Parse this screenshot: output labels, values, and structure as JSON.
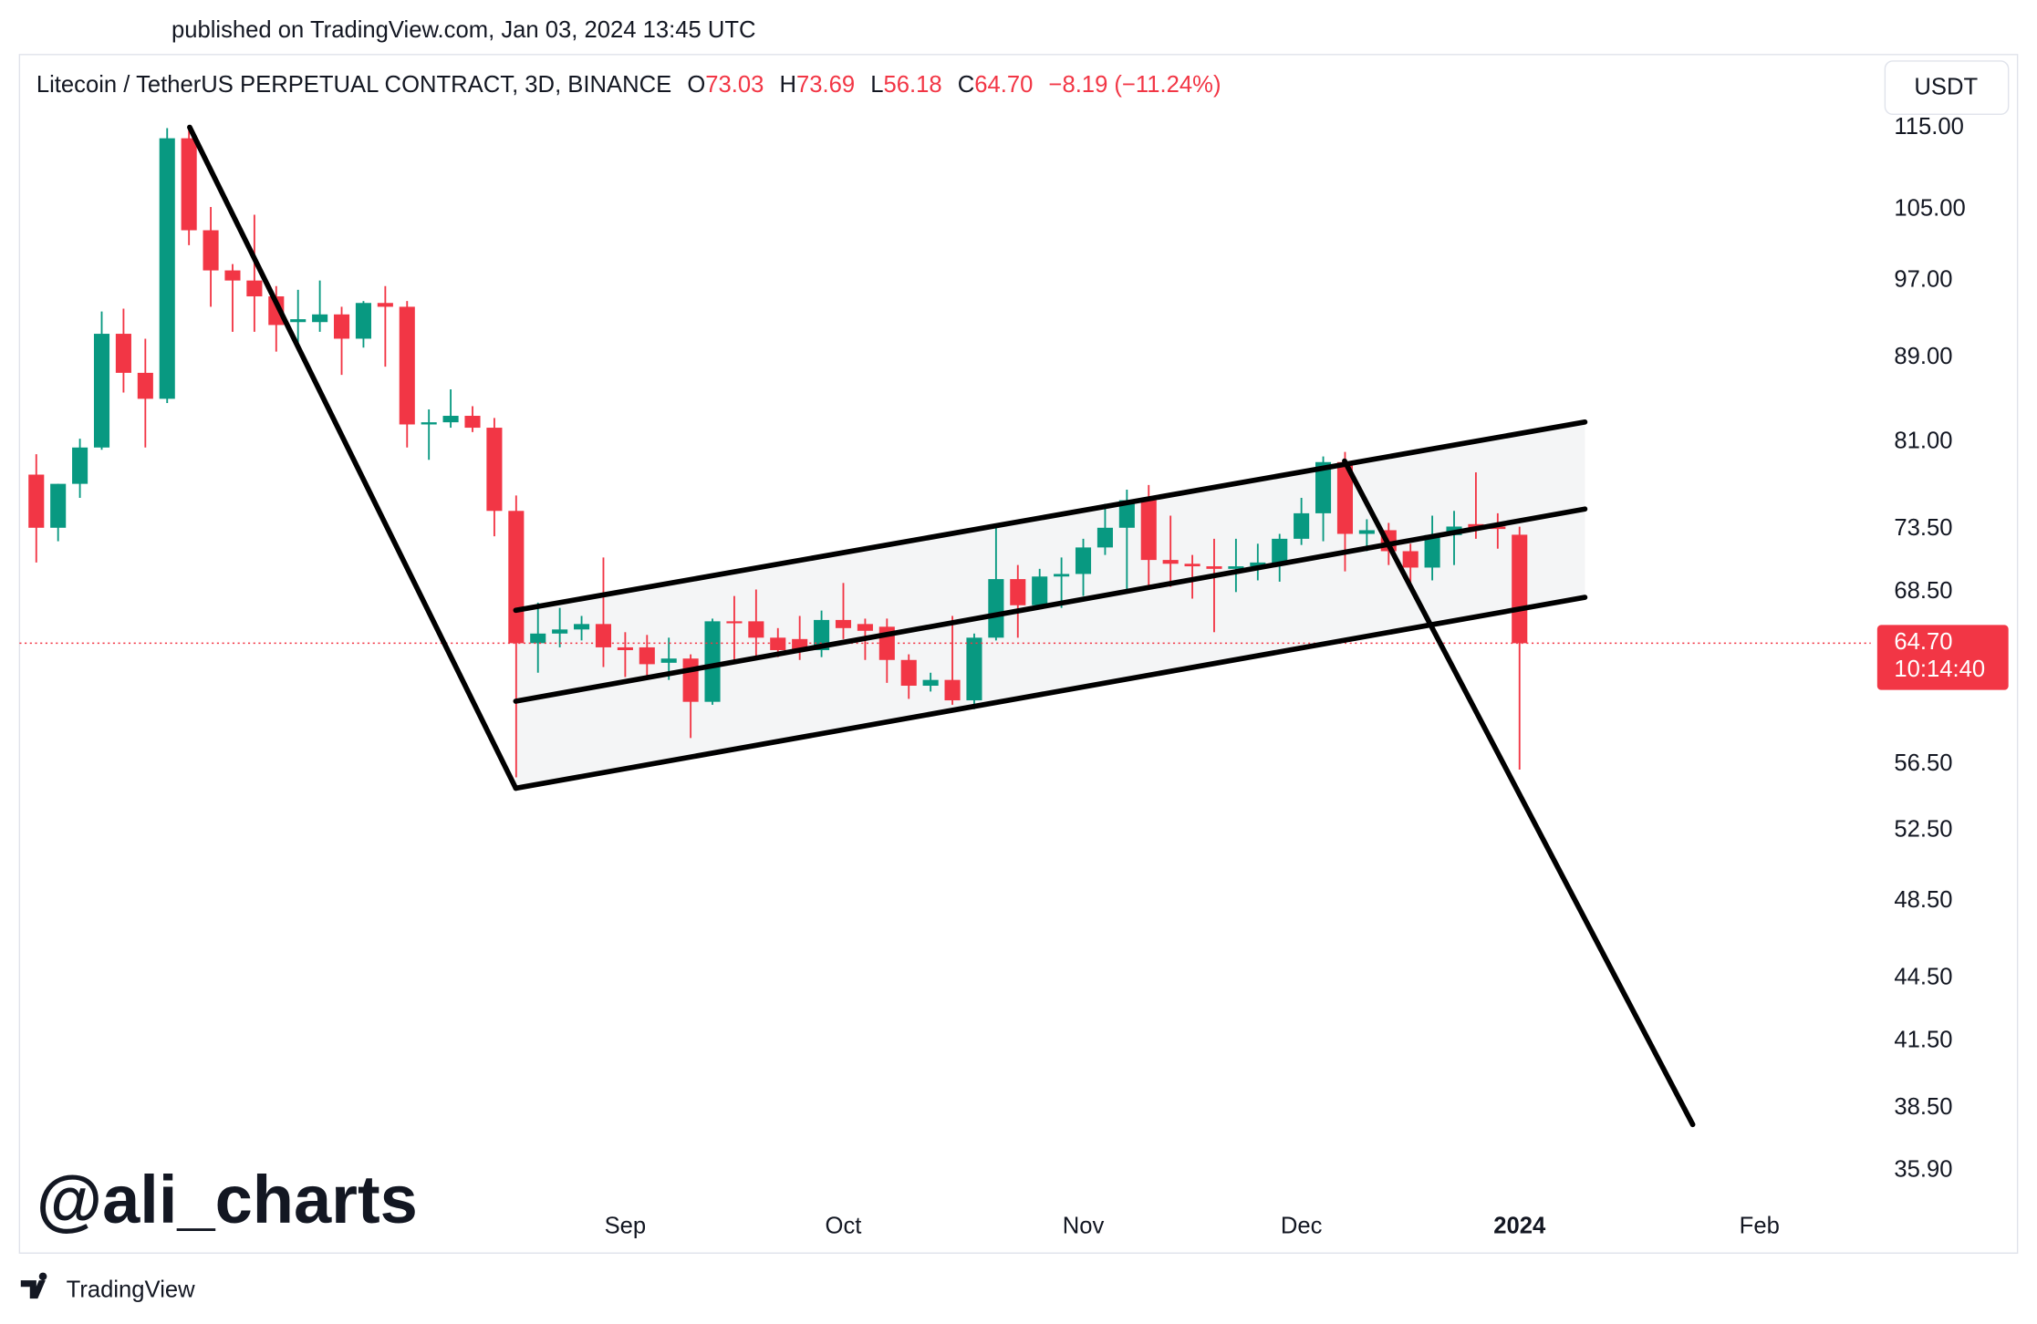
{
  "published": "published on TradingView.com, Jan 03, 2024 13:45 UTC",
  "watermark": "@ali_charts",
  "footer": "TradingView",
  "chart_data": {
    "type": "candlestick",
    "title": "Litecoin / TetherUS PERPETUAL CONTRACT, 3D, BINANCE",
    "legend": [
      {
        "label": "O",
        "value": "73.03"
      },
      {
        "label": "H",
        "value": "73.69"
      },
      {
        "label": "L",
        "value": "56.18"
      },
      {
        "label": "C",
        "value": "64.70"
      }
    ],
    "change": "−8.19 (−11.24%)",
    "currency": "USDT",
    "up_color": "#089981",
    "down_color": "#f23645",
    "open": [
      78.1,
      73.6,
      77.3,
      80.5,
      91.4,
      87.5,
      85.0,
      113.7,
      102.6,
      98.1,
      97.0,
      95.3,
      92.6,
      92.6,
      93.4,
      90.9,
      94.6,
      94.2,
      82.6,
      82.8,
      83.4,
      82.3,
      75.0,
      64.7,
      65.4,
      65.7,
      66.1,
      64.4,
      64.4,
      63.3,
      63.6,
      60.6,
      66.3,
      66.3,
      65.1,
      65.0,
      64.2,
      66.4,
      66.1,
      65.9,
      63.5,
      61.7,
      62.1,
      60.7,
      65.1,
      69.5,
      67.5,
      69.7,
      69.9,
      72.0,
      73.6,
      75.9,
      71.0,
      70.7,
      70.5,
      70.3,
      70.5,
      70.6,
      72.7,
      74.8,
      79.2,
      73.1,
      73.4,
      71.7,
      70.4,
      73.0,
      73.9,
      73.7,
      73.03
    ],
    "high": [
      79.9,
      77.3,
      81.3,
      93.7,
      94.0,
      90.9,
      115.0,
      114.8,
      105.3,
      98.8,
      104.4,
      96.4,
      96.0,
      97.0,
      94.2,
      94.8,
      96.4,
      94.8,
      84.0,
      85.9,
      84.3,
      83.2,
      76.3,
      67.7,
      67.3,
      66.7,
      71.2,
      65.5,
      65.3,
      65.1,
      63.9,
      66.5,
      68.2,
      68.7,
      65.8,
      66.7,
      67.1,
      69.2,
      66.5,
      66.5,
      63.9,
      62.6,
      66.7,
      65.4,
      73.9,
      70.6,
      70.3,
      71.2,
      72.7,
      75.6,
      76.8,
      77.2,
      74.6,
      71.4,
      72.7,
      72.7,
      72.3,
      73.1,
      76.1,
      79.7,
      80.1,
      74.3,
      74.0,
      72.3,
      74.6,
      75.0,
      78.3,
      74.8,
      73.69
    ],
    "low": [
      70.8,
      72.5,
      76.1,
      80.3,
      85.6,
      80.5,
      84.6,
      100.9,
      94.2,
      91.6,
      91.6,
      89.6,
      90.0,
      91.6,
      87.3,
      90.0,
      88.1,
      80.5,
      79.4,
      82.3,
      81.9,
      72.9,
      55.7,
      62.6,
      64.4,
      64.9,
      63.0,
      62.3,
      62.1,
      62.1,
      58.2,
      60.4,
      63.3,
      63.5,
      63.7,
      63.5,
      63.7,
      65.0,
      63.5,
      61.9,
      60.8,
      61.3,
      60.4,
      60.1,
      64.9,
      65.1,
      67.3,
      67.3,
      68.2,
      71.4,
      68.4,
      68.7,
      68.9,
      68.0,
      65.5,
      68.5,
      69.4,
      69.3,
      72.2,
      72.5,
      70.1,
      71.7,
      70.6,
      68.9,
      69.4,
      70.6,
      72.7,
      71.9,
      56.18
    ],
    "close": [
      73.6,
      77.3,
      80.5,
      91.4,
      87.5,
      85.0,
      113.7,
      102.6,
      98.1,
      97.0,
      95.3,
      92.3,
      92.9,
      93.4,
      90.9,
      94.6,
      94.2,
      82.6,
      82.8,
      83.4,
      82.3,
      75.0,
      64.7,
      65.4,
      65.7,
      66.1,
      64.4,
      64.2,
      63.2,
      63.6,
      60.6,
      66.3,
      66.2,
      65.1,
      64.2,
      64.1,
      66.4,
      65.8,
      65.6,
      63.5,
      61.7,
      62.1,
      60.7,
      65.1,
      69.5,
      67.5,
      69.7,
      69.9,
      72.0,
      73.6,
      75.9,
      71.0,
      70.7,
      70.5,
      70.3,
      70.5,
      70.8,
      72.7,
      74.8,
      79.2,
      73.1,
      73.4,
      71.7,
      70.4,
      73.0,
      73.7,
      73.6,
      73.5,
      64.7
    ],
    "last_price": {
      "value": 64.7,
      "label": "64.70"
    },
    "countdown": "10:14:40",
    "log_scale": true,
    "xlim": [
      -0.77,
      84.1
    ],
    "xticks": [
      {
        "value": 27,
        "label": "Sep"
      },
      {
        "value": 37,
        "label": "Oct"
      },
      {
        "value": 48,
        "label": "Nov"
      },
      {
        "value": 58,
        "label": "Dec"
      },
      {
        "value": 68,
        "label": "2024"
      },
      {
        "value": 79,
        "label": "Feb"
      }
    ],
    "ylim": [
      34.7,
      124.3
    ],
    "yticks": [
      {
        "value": 115,
        "label": "115.00"
      },
      {
        "value": 105,
        "label": "105.00"
      },
      {
        "value": 97,
        "label": "97.00"
      },
      {
        "value": 89,
        "label": "89.00"
      },
      {
        "value": 81,
        "label": "81.00"
      },
      {
        "value": 73.5,
        "label": "73.50"
      },
      {
        "value": 68.5,
        "label": "68.50"
      },
      {
        "value": 56.5,
        "label": "56.50"
      },
      {
        "value": 52.5,
        "label": "52.50"
      },
      {
        "value": 48.5,
        "label": "48.50"
      },
      {
        "value": 44.5,
        "label": "44.50"
      },
      {
        "value": 41.5,
        "label": "41.50"
      },
      {
        "value": 38.5,
        "label": "38.50"
      },
      {
        "value": 35.9,
        "label": "35.90"
      }
    ]
  }
}
